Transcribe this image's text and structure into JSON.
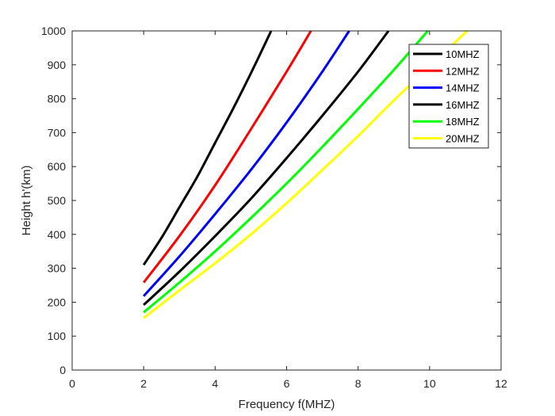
{
  "chart_data": {
    "type": "line",
    "title": "",
    "xlabel": "Frequency f(MHZ)",
    "ylabel": "Height h'(km)",
    "xlim": [
      0,
      12
    ],
    "ylim": [
      0,
      1000
    ],
    "xticks": [
      "0",
      "2",
      "4",
      "6",
      "8",
      "10",
      "12"
    ],
    "yticks": [
      "0",
      "100",
      "200",
      "300",
      "400",
      "500",
      "600",
      "700",
      "800",
      "900",
      "1000"
    ],
    "grid": false,
    "legend_position": "top-right",
    "series": [
      {
        "name": "10MHZ",
        "color": "#000000",
        "x": [
          2.0,
          2.5,
          3.0,
          3.5,
          4.0,
          4.5,
          5.0,
          5.5,
          5.56
        ],
        "y": [
          310,
          390,
          480,
          570,
          670,
          770,
          875,
          985,
          1000
        ]
      },
      {
        "name": "12MHZ",
        "color": "#ff0000",
        "x": [
          2.0,
          3.0,
          4.0,
          5.0,
          6.0,
          6.68
        ],
        "y": [
          258,
          395,
          545,
          710,
          880,
          1000
        ]
      },
      {
        "name": "14MHZ",
        "color": "#0000ff",
        "x": [
          2.0,
          3.0,
          4.0,
          5.0,
          6.0,
          7.0,
          7.75
        ],
        "y": [
          218,
          335,
          460,
          590,
          730,
          880,
          1000
        ]
      },
      {
        "name": "16MHZ",
        "color": "#000000",
        "x": [
          2.0,
          3.0,
          4.0,
          5.0,
          6.0,
          7.0,
          8.0,
          8.85
        ],
        "y": [
          192,
          290,
          395,
          505,
          625,
          750,
          880,
          1000
        ]
      },
      {
        "name": "18MHZ",
        "color": "#00ff00",
        "x": [
          2.0,
          3.0,
          4.0,
          5.0,
          6.0,
          7.0,
          8.0,
          9.0,
          9.95
        ],
        "y": [
          170,
          258,
          350,
          448,
          550,
          658,
          770,
          885,
          1000
        ]
      },
      {
        "name": "20MHZ",
        "color": "#ffff00",
        "x": [
          2.0,
          3.0,
          4.0,
          5.0,
          6.0,
          7.0,
          8.0,
          9.0,
          10.0,
          11.05
        ],
        "y": [
          153,
          235,
          315,
          400,
          492,
          590,
          690,
          795,
          895,
          1000
        ]
      }
    ]
  }
}
